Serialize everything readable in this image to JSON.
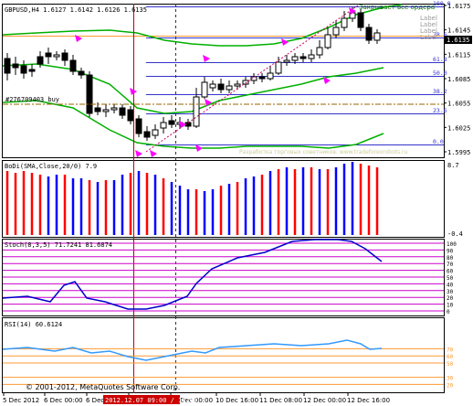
{
  "main": {
    "header": "GBPUSD,H4  1.6127 1.6142 1.6126 1.6135",
    "order_label": "#276709403 buy",
    "fib_note": "Закрывает все ордера",
    "labels": [
      "Label",
      "Label",
      "Label",
      "Label"
    ],
    "price_ticks": [
      {
        "label": "1.6175",
        "price": 1.6175
      },
      {
        "label": "1.6145",
        "price": 1.6145
      },
      {
        "label": "1.6115",
        "price": 1.6115
      },
      {
        "label": "1.6085",
        "price": 1.6085
      },
      {
        "label": "1.6055",
        "price": 1.6055
      },
      {
        "label": "1.6025",
        "price": 1.6025
      },
      {
        "label": "1.5995",
        "price": 1.5995
      }
    ],
    "current_price": "1.6135",
    "fib_levels": [
      "100.0",
      "78.6",
      "61.8",
      "50.0",
      "38.2",
      "23.6",
      "0.0"
    ],
    "watermark": "Разработка торговых советников: www.tradeforexrobots.ru"
  },
  "bollinger": {
    "title": "BoDi(SMA,Close,20/0) 7.9",
    "top_tick": "8.7",
    "bottom_tick": "-0.4"
  },
  "stoch": {
    "title": "Stoch(8,3,5) 71.7241 81.6874",
    "levels": [
      "100",
      "90",
      "80",
      "70",
      "60",
      "50",
      "40",
      "30",
      "20",
      "10",
      "0"
    ]
  },
  "rsi": {
    "title": "RSI(14) 60.6124",
    "levels": [
      "70",
      "60",
      "50",
      "30",
      "20"
    ]
  },
  "x_axis": {
    "labels": [
      "5 Dec 2012",
      "6 Dec 00:00",
      "6 Dec 16:00",
      "7 Dec 08:00",
      "10 Dec 00:00",
      "10 Dec 16:00",
      "11 Dec 08:00",
      "12 Dec 00:00",
      "12 Dec 16:00"
    ],
    "crosshair_label": "2012.12.07 09:00 / 17:00"
  },
  "copyright": "© 2001-2012, MetaQuotes Software Corp.",
  "colors": {
    "bull_bar": "#0000ff",
    "bear_bar": "#ff0000",
    "bollinger": "#00b000",
    "stoch_level": "#cc00cc",
    "stoch_line": "#0000cc",
    "rsi_level": "#ff9933",
    "rsi_line": "#3399ff",
    "fib": "#3333cc",
    "order": "#996600",
    "arrow": "#ff00ff"
  }
}
